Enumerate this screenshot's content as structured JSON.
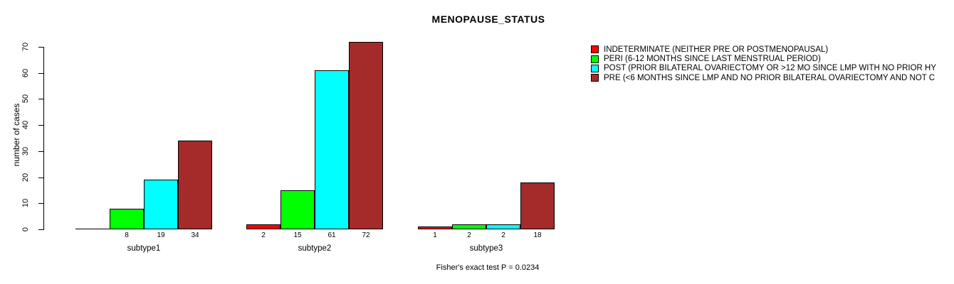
{
  "chart_data": {
    "type": "bar",
    "title": "MENOPAUSE_STATUS",
    "ylabel": "number of cases",
    "xlabel": "",
    "ylim": [
      0,
      70
    ],
    "yticks": [
      0,
      10,
      20,
      30,
      40,
      50,
      60,
      70
    ],
    "grid": false,
    "legend_position": "right",
    "bar_value_labels": true,
    "categories": [
      "subtype1",
      "subtype2",
      "subtype3"
    ],
    "series": [
      {
        "name": "INDETERMINATE (NEITHER PRE OR POSTMENOPAUSAL)",
        "color": "#FF0000",
        "values": [
          0,
          2,
          1
        ]
      },
      {
        "name": "PERI (6-12 MONTHS SINCE LAST MENSTRUAL PERIOD)",
        "color": "#00FF00",
        "values": [
          8,
          15,
          2
        ]
      },
      {
        "name": "POST (PRIOR BILATERAL OVARIECTOMY OR >12 MO SINCE LMP WITH NO PRIOR HY",
        "color": "#00FFFF",
        "values": [
          19,
          61,
          2
        ]
      },
      {
        "name": "PRE (<6 MONTHS SINCE LMP AND NO PRIOR BILATERAL OVARIECTOMY AND NOT C",
        "color": "#A52A2A",
        "values": [
          34,
          72,
          18
        ]
      }
    ],
    "annotation": "Fisher's exact test P = 0.0234"
  }
}
